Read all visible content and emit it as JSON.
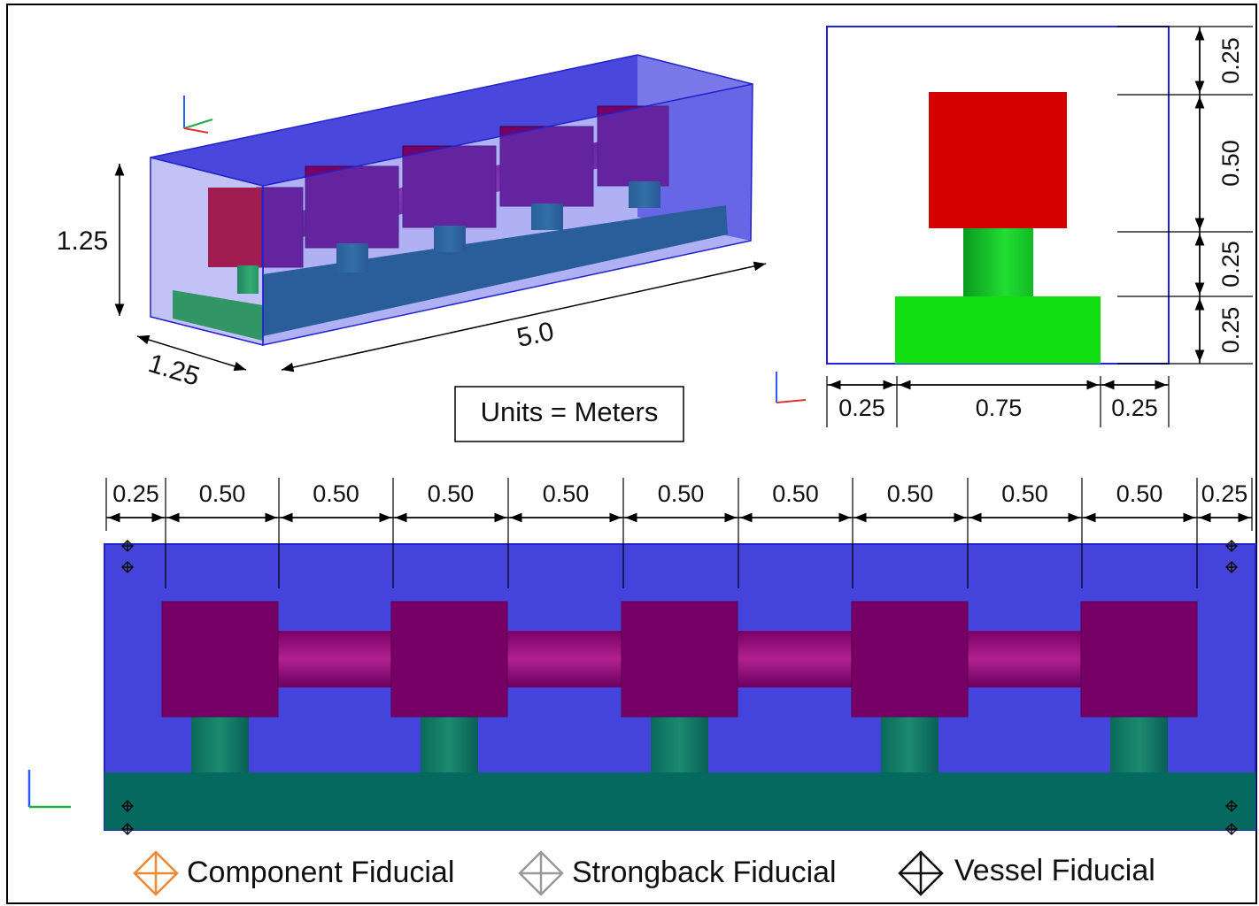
{
  "iso_view": {
    "height_label": "1.25",
    "depth_label": "1.25",
    "length_label": "5.0"
  },
  "units_label": "Units = Meters",
  "end_view": {
    "vertical_dims": [
      "0.25",
      "0.50",
      "0.25",
      "0.25"
    ],
    "horizontal_dims": [
      "0.25",
      "0.75",
      "0.25"
    ]
  },
  "side_view": {
    "dims": [
      "0.25",
      "0.50",
      "0.50",
      "0.50",
      "0.50",
      "0.50",
      "0.50",
      "0.50",
      "0.50",
      "0.50",
      "0.25"
    ]
  },
  "legend": [
    "Component Fiducial",
    "Strongback Fiducial",
    "Vessel Fiducial"
  ]
}
